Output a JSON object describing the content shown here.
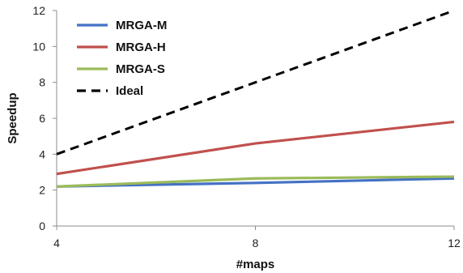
{
  "chart_data": {
    "type": "line",
    "xlabel": "#maps",
    "ylabel": "Speedup",
    "x": [
      4,
      8,
      12
    ],
    "xlim": [
      4,
      12
    ],
    "ylim": [
      0,
      12
    ],
    "xticks": [
      "4",
      "8",
      "12"
    ],
    "yticks": [
      "0",
      "2",
      "4",
      "6",
      "8",
      "10",
      "12"
    ],
    "grid": false,
    "legend_position": "top-left",
    "series": [
      {
        "name": "MRGA-M",
        "values": [
          2.2,
          2.4,
          2.65
        ],
        "color": "#4472C4",
        "dash": "solid"
      },
      {
        "name": "MRGA-H",
        "values": [
          2.9,
          4.6,
          5.8
        ],
        "color": "#C0504D",
        "dash": "solid"
      },
      {
        "name": "MRGA-S",
        "values": [
          2.2,
          2.65,
          2.75
        ],
        "color": "#9BBB59",
        "dash": "solid"
      },
      {
        "name": "Ideal",
        "values": [
          4,
          8,
          12
        ],
        "color": "#000000",
        "dash": "dashed"
      }
    ]
  }
}
